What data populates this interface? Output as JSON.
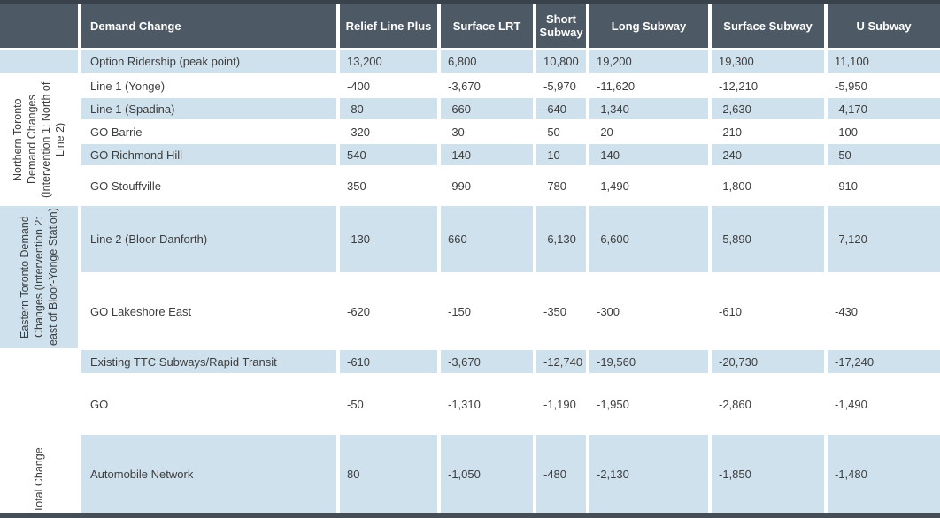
{
  "table": {
    "header": {
      "corner": "",
      "demand_change": "Demand Change",
      "columns": [
        "Relief Line Plus",
        "Surface LRT",
        "Short Subway",
        "Long Subway",
        "Surface Subway",
        "U Subway"
      ]
    },
    "side_labels": {
      "northern": {
        "lines": [
          "Northern Toronto",
          "Demand Changes",
          "(Intervention 1: North of",
          "Line 2)"
        ]
      },
      "eastern": {
        "lines": [
          "Eastern Toronto Demand",
          "Changes (Intervention 2:",
          "east of Bloor-Yonge Station)"
        ]
      },
      "total": {
        "lines": [
          "Total Change"
        ]
      }
    },
    "rows": [
      {
        "label": "Option Ridership (peak point)",
        "values": [
          "13,200",
          "6,800",
          "10,800",
          "19,200",
          "19,300",
          "11,100"
        ]
      },
      {
        "label": "Line 1 (Yonge)",
        "values": [
          "-400",
          "-3,670",
          "-5,970",
          "-11,620",
          "-12,210",
          "-5,950"
        ]
      },
      {
        "label": "Line 1 (Spadina)",
        "values": [
          "-80",
          "-660",
          "-640",
          "-1,340",
          "-2,630",
          "-4,170"
        ]
      },
      {
        "label": "GO Barrie",
        "values": [
          "-320",
          "-30",
          "-50",
          "-20",
          "-210",
          "-100"
        ]
      },
      {
        "label": "GO Richmond Hill",
        "values": [
          "540",
          "-140",
          "-10",
          "-140",
          "-240",
          "-50"
        ]
      },
      {
        "label": "GO Stouffville",
        "values": [
          "350",
          "-990",
          "-780",
          "-1,490",
          "-1,800",
          "-910"
        ]
      },
      {
        "label": "Line 2 (Bloor-Danforth)",
        "values": [
          "-130",
          "660",
          "-6,130",
          "-6,600",
          "-5,890",
          "-7,120"
        ]
      },
      {
        "label": "GO Lakeshore East",
        "values": [
          "-620",
          "-150",
          "-350",
          "-300",
          "-610",
          "-430"
        ]
      },
      {
        "label": "Existing TTC Subways/Rapid Transit",
        "values": [
          "-610",
          "-3,670",
          "-12,740",
          "-19,560",
          "-20,730",
          "-17,240"
        ]
      },
      {
        "label": "GO",
        "values": [
          "-50",
          "-1,310",
          "-1,190",
          "-1,950",
          "-2,860",
          "-1,490"
        ]
      },
      {
        "label": "Automobile Network",
        "values": [
          "80",
          "-1,050",
          "-480",
          "-2,130",
          "-1,850",
          "-1,480"
        ]
      }
    ],
    "colors": {
      "header_bg": "#4d5965",
      "band_blue": "#cfe1ed",
      "header_text": "#ffffff",
      "body_text": "#3d3d3d",
      "border_dark": "#39424b"
    }
  }
}
